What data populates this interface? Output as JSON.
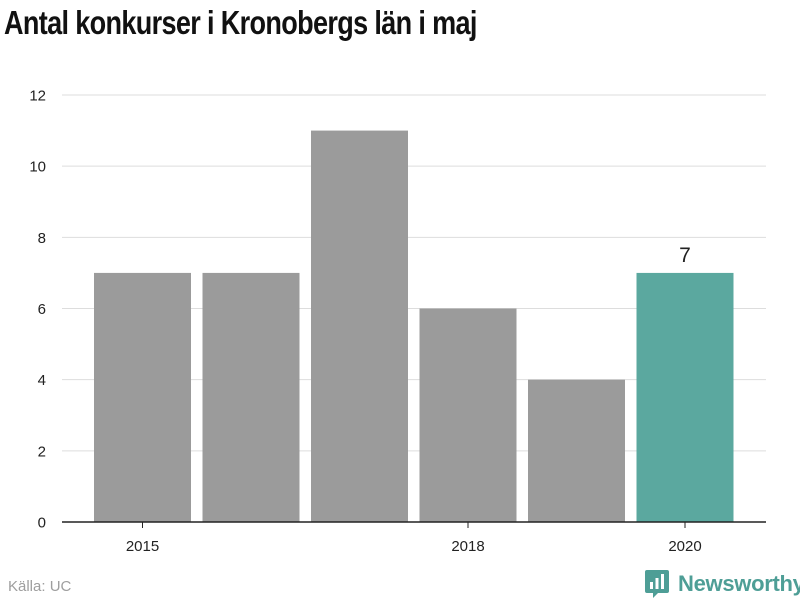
{
  "title": "Antal konkurser i Kronobergs län i maj",
  "source": "Källa: UC",
  "brand": "Newsworthy",
  "colors": {
    "bar": "#9b9b9b",
    "highlight": "#5ba89f",
    "grid": "#dddddd",
    "axis": "#222222",
    "brand": "#4e9e96"
  },
  "chart_data": {
    "type": "bar",
    "x": [
      2015,
      2016,
      2017,
      2018,
      2019,
      2020
    ],
    "values": [
      7,
      7,
      11,
      6,
      4,
      7
    ],
    "x_tick_labels": [
      "2015",
      "2018",
      "2020"
    ],
    "y_ticks": [
      0,
      2,
      4,
      6,
      8,
      10,
      12
    ],
    "ylim": [
      0,
      12
    ],
    "highlight_index": 5,
    "data_labels": [
      {
        "index": 5,
        "text": "7"
      }
    ],
    "grid": true,
    "xlabel": "",
    "ylabel": ""
  }
}
